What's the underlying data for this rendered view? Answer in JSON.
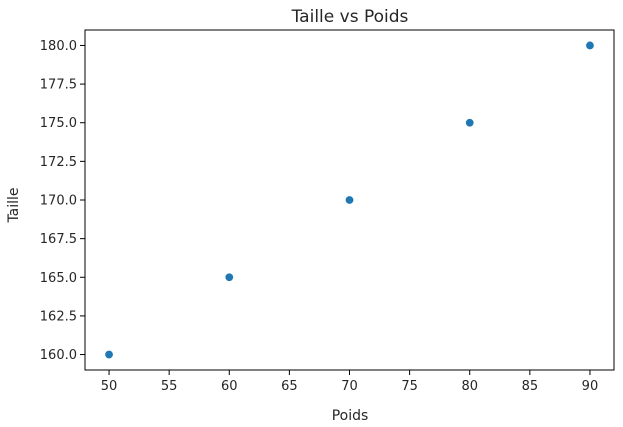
{
  "chart_data": {
    "type": "scatter",
    "title": "Taille vs Poids",
    "xlabel": "Poids",
    "ylabel": "Taille",
    "x": [
      50,
      60,
      70,
      80,
      90
    ],
    "y": [
      160,
      165,
      170,
      175,
      180
    ],
    "xlim": [
      48,
      92
    ],
    "ylim": [
      159,
      181
    ],
    "xticks": [
      50,
      55,
      60,
      65,
      70,
      75,
      80,
      85,
      90
    ],
    "xtick_labels": [
      "50",
      "55",
      "60",
      "65",
      "70",
      "75",
      "80",
      "85",
      "90"
    ],
    "yticks": [
      160,
      162.5,
      165,
      167.5,
      170,
      172.5,
      175,
      177.5,
      180
    ],
    "ytick_labels": [
      "160.0",
      "162.5",
      "165.0",
      "167.5",
      "170.0",
      "172.5",
      "175.0",
      "177.5",
      "180.0"
    ],
    "grid": false,
    "colors": {
      "marker": "#1f77b4"
    }
  }
}
